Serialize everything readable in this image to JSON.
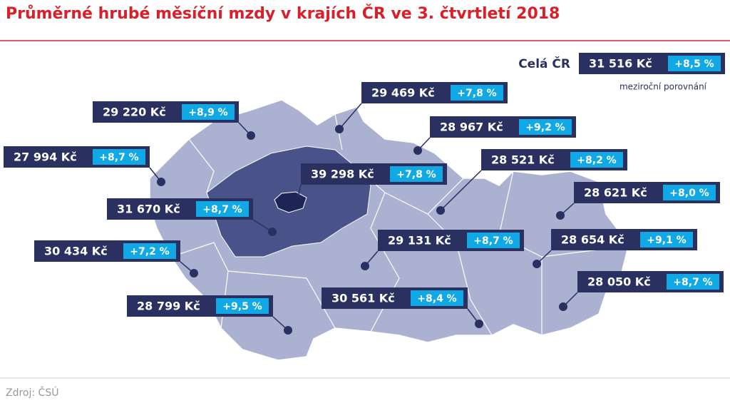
{
  "title": "Průměrné hrubé měsíční mzdy v krajích ČR ve 3. čtvrtletí 2018",
  "national": {
    "label": "Celá ČR",
    "wage": "31 516 Kč",
    "change": "+8,5 %"
  },
  "note": "meziroční porovnání",
  "source": "Zdroj: ČSÚ",
  "regions": [
    {
      "wage": "29 220 Kč",
      "change": "+8,9 %"
    },
    {
      "wage": "27 994 Kč",
      "change": "+8,7 %"
    },
    {
      "wage": "31 670 Kč",
      "change": "+8,7 %"
    },
    {
      "wage": "30 434 Kč",
      "change": "+7,2 %"
    },
    {
      "wage": "28 799 Kč",
      "change": "+9,5 %"
    },
    {
      "wage": "39 298 Kč",
      "change": "+7,8 %"
    },
    {
      "wage": "29 469 Kč",
      "change": "+7,8 %"
    },
    {
      "wage": "28 967 Kč",
      "change": "+9,2 %"
    },
    {
      "wage": "28 521 Kč",
      "change": "+8,2 %"
    },
    {
      "wage": "29 131 Kč",
      "change": "+8,7 %"
    },
    {
      "wage": "30 561 Kč",
      "change": "+8,4 %"
    },
    {
      "wage": "28 621 Kč",
      "change": "+8,0 %"
    },
    {
      "wage": "28 654 Kč",
      "change": "+9,1 %"
    },
    {
      "wage": "28 050 Kč",
      "change": "+8,7 %"
    }
  ]
}
